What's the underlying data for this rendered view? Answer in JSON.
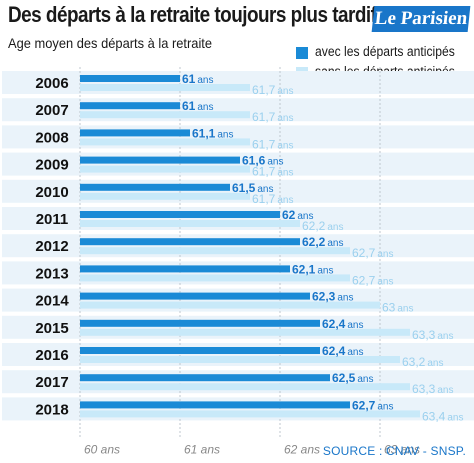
{
  "title": "Des départs à la retraite toujours plus tardifs",
  "logo": "Le Parisien",
  "subtitle": "Age moyen des départs à la retraite",
  "source": "SOURCE : CNAV - SNSP.",
  "colors": {
    "dark_bar": "#1a8ad6",
    "light_bar": "#c8e9f9",
    "light_label": "#9bd0ee",
    "year_band": "#eaf3fa",
    "axis_text": "#888888",
    "accent": "#1976c9"
  },
  "chart_data": {
    "type": "bar",
    "orientation": "horizontal",
    "categories": [
      "2006",
      "2007",
      "2008",
      "2009",
      "2010",
      "2011",
      "2012",
      "2013",
      "2014",
      "2015",
      "2016",
      "2017",
      "2018"
    ],
    "series": [
      {
        "name": "avec les départs anticipés",
        "values": [
          61,
          61,
          61.1,
          61.6,
          61.5,
          62,
          62.2,
          62.1,
          62.3,
          62.4,
          62.4,
          62.5,
          62.7
        ],
        "labels": [
          "61",
          "61",
          "61,1",
          "61,6",
          "61,5",
          "62",
          "62,2",
          "62,1",
          "62,3",
          "62,4",
          "62,4",
          "62,5",
          "62,7"
        ]
      },
      {
        "name": "sans les départs anticipés",
        "values": [
          61.7,
          61.7,
          61.7,
          61.7,
          61.7,
          62.2,
          62.7,
          62.7,
          63,
          63.3,
          63.2,
          63.3,
          63.4
        ],
        "labels": [
          "61,7",
          "61,7",
          "61,7",
          "61,7",
          "61,7",
          "62,2",
          "62,7",
          "62,7",
          "63",
          "63,3",
          "63,2",
          "63,3",
          "63,4"
        ]
      }
    ],
    "value_unit": "ans",
    "xlim": [
      60,
      63.8
    ],
    "x_ticks": [
      60,
      61,
      62,
      63
    ],
    "x_tick_labels": [
      "60 ans",
      "61 ans",
      "62 ans",
      "63 ans"
    ],
    "grid": true,
    "legend_position": "top-right"
  }
}
